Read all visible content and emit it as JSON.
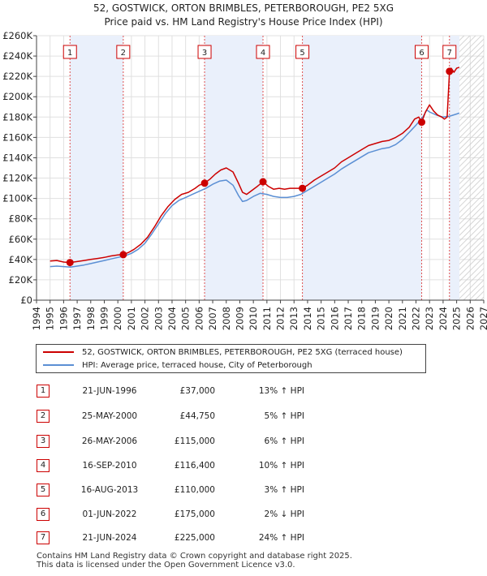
{
  "chart_data": {
    "type": "line",
    "title": "52, GOSTWICK, ORTON BRIMBLES, PETERBOROUGH, PE2 5XG",
    "subtitle": "Price paid vs. HM Land Registry's House Price Index (HPI)",
    "xlim": [
      1994,
      2027
    ],
    "ylim": [
      0,
      260000
    ],
    "x_ticks": [
      "1994",
      "1995",
      "1996",
      "1997",
      "1998",
      "1999",
      "2000",
      "2001",
      "2002",
      "2003",
      "2004",
      "2005",
      "2006",
      "2007",
      "2008",
      "2009",
      "2010",
      "2011",
      "2012",
      "2013",
      "2014",
      "2015",
      "2016",
      "2017",
      "2018",
      "2019",
      "2020",
      "2021",
      "2022",
      "2023",
      "2024",
      "2025",
      "2026",
      "2027"
    ],
    "y_ticks": [
      {
        "value": 0,
        "label": "£0"
      },
      {
        "value": 20000,
        "label": "£20K"
      },
      {
        "value": 40000,
        "label": "£40K"
      },
      {
        "value": 60000,
        "label": "£60K"
      },
      {
        "value": 80000,
        "label": "£80K"
      },
      {
        "value": 100000,
        "label": "£100K"
      },
      {
        "value": 120000,
        "label": "£120K"
      },
      {
        "value": 140000,
        "label": "£140K"
      },
      {
        "value": 160000,
        "label": "£160K"
      },
      {
        "value": 180000,
        "label": "£180K"
      },
      {
        "value": 200000,
        "label": "£200K"
      },
      {
        "value": 220000,
        "label": "£220K"
      },
      {
        "value": 240000,
        "label": "£240K"
      },
      {
        "value": 260000,
        "label": "£260K"
      }
    ],
    "data_range_end": 2025.2,
    "series": [
      {
        "name": "52, GOSTWICK, ORTON BRIMBLES, PETERBOROUGH, PE2 5XG (terraced house)",
        "color": "#cc0000",
        "points": [
          [
            1995.0,
            38500
          ],
          [
            1995.5,
            39000
          ],
          [
            1996.0,
            37500
          ],
          [
            1996.47,
            37000
          ],
          [
            1997.0,
            38000
          ],
          [
            1997.5,
            39000
          ],
          [
            1998.0,
            40000
          ],
          [
            1998.5,
            41000
          ],
          [
            1999.0,
            42000
          ],
          [
            1999.5,
            43500
          ],
          [
            2000.0,
            44500
          ],
          [
            2000.4,
            44750
          ],
          [
            2000.8,
            47000
          ],
          [
            2001.2,
            50000
          ],
          [
            2001.7,
            55000
          ],
          [
            2002.2,
            62000
          ],
          [
            2002.7,
            72000
          ],
          [
            2003.2,
            83000
          ],
          [
            2003.7,
            92000
          ],
          [
            2004.2,
            99000
          ],
          [
            2004.7,
            104000
          ],
          [
            2005.2,
            106000
          ],
          [
            2005.7,
            110000
          ],
          [
            2006.0,
            113000
          ],
          [
            2006.4,
            115000
          ],
          [
            2006.8,
            119000
          ],
          [
            2007.2,
            124000
          ],
          [
            2007.6,
            128000
          ],
          [
            2008.0,
            130000
          ],
          [
            2008.5,
            126000
          ],
          [
            2008.9,
            115000
          ],
          [
            2009.2,
            106000
          ],
          [
            2009.5,
            104000
          ],
          [
            2009.9,
            108000
          ],
          [
            2010.3,
            112000
          ],
          [
            2010.71,
            116400
          ],
          [
            2011.1,
            112000
          ],
          [
            2011.5,
            109000
          ],
          [
            2011.9,
            110000
          ],
          [
            2012.3,
            109000
          ],
          [
            2012.7,
            110000
          ],
          [
            2013.1,
            110000
          ],
          [
            2013.62,
            110000
          ],
          [
            2014.0,
            113000
          ],
          [
            2014.5,
            118000
          ],
          [
            2015.0,
            122000
          ],
          [
            2015.5,
            126000
          ],
          [
            2016.0,
            130000
          ],
          [
            2016.5,
            136000
          ],
          [
            2017.0,
            140000
          ],
          [
            2017.5,
            144000
          ],
          [
            2018.0,
            148000
          ],
          [
            2018.5,
            152000
          ],
          [
            2019.0,
            154000
          ],
          [
            2019.5,
            156000
          ],
          [
            2020.0,
            157000
          ],
          [
            2020.5,
            160000
          ],
          [
            2021.0,
            164000
          ],
          [
            2021.5,
            170000
          ],
          [
            2021.9,
            178000
          ],
          [
            2022.2,
            180000
          ],
          [
            2022.42,
            175000
          ],
          [
            2022.7,
            185000
          ],
          [
            2023.0,
            192000
          ],
          [
            2023.3,
            186000
          ],
          [
            2023.6,
            182000
          ],
          [
            2023.9,
            180000
          ],
          [
            2024.1,
            178000
          ],
          [
            2024.3,
            180000
          ],
          [
            2024.47,
            225000
          ],
          [
            2024.6,
            228000
          ],
          [
            2024.8,
            224000
          ],
          [
            2025.0,
            228000
          ],
          [
            2025.2,
            229000
          ]
        ]
      },
      {
        "name": "HPI: Average price, terraced house, City of Peterborough",
        "color": "#5b8fd4",
        "points": [
          [
            1995.0,
            33000
          ],
          [
            1995.5,
            33500
          ],
          [
            1996.0,
            33000
          ],
          [
            1996.5,
            32500
          ],
          [
            1997.0,
            33500
          ],
          [
            1997.5,
            34500
          ],
          [
            1998.0,
            36000
          ],
          [
            1998.5,
            37500
          ],
          [
            1999.0,
            39000
          ],
          [
            1999.5,
            40500
          ],
          [
            2000.0,
            42000
          ],
          [
            2000.5,
            43500
          ],
          [
            2001.0,
            46000
          ],
          [
            2001.5,
            50000
          ],
          [
            2002.0,
            56000
          ],
          [
            2002.5,
            65000
          ],
          [
            2003.0,
            75000
          ],
          [
            2003.5,
            85000
          ],
          [
            2004.0,
            93000
          ],
          [
            2004.5,
            98000
          ],
          [
            2005.0,
            101000
          ],
          [
            2005.5,
            104000
          ],
          [
            2006.0,
            107000
          ],
          [
            2006.5,
            110000
          ],
          [
            2007.0,
            114000
          ],
          [
            2007.5,
            117000
          ],
          [
            2008.0,
            118000
          ],
          [
            2008.5,
            113000
          ],
          [
            2008.9,
            103000
          ],
          [
            2009.2,
            97000
          ],
          [
            2009.5,
            98000
          ],
          [
            2010.0,
            102000
          ],
          [
            2010.5,
            105000
          ],
          [
            2011.0,
            104000
          ],
          [
            2011.5,
            102000
          ],
          [
            2012.0,
            101000
          ],
          [
            2012.5,
            101000
          ],
          [
            2013.0,
            102000
          ],
          [
            2013.5,
            104000
          ],
          [
            2014.0,
            108000
          ],
          [
            2014.5,
            112000
          ],
          [
            2015.0,
            116000
          ],
          [
            2015.5,
            120000
          ],
          [
            2016.0,
            124000
          ],
          [
            2016.5,
            129000
          ],
          [
            2017.0,
            133000
          ],
          [
            2017.5,
            137000
          ],
          [
            2018.0,
            141000
          ],
          [
            2018.5,
            145000
          ],
          [
            2019.0,
            147000
          ],
          [
            2019.5,
            149000
          ],
          [
            2020.0,
            150000
          ],
          [
            2020.5,
            153000
          ],
          [
            2021.0,
            158000
          ],
          [
            2021.5,
            165000
          ],
          [
            2022.0,
            172000
          ],
          [
            2022.5,
            180000
          ],
          [
            2022.8,
            187000
          ],
          [
            2023.0,
            185000
          ],
          [
            2023.5,
            182000
          ],
          [
            2024.0,
            180000
          ],
          [
            2024.5,
            181000
          ],
          [
            2025.0,
            183000
          ],
          [
            2025.2,
            184000
          ]
        ]
      }
    ],
    "transactions": [
      {
        "num": "1",
        "x": 1996.47,
        "price": 37000
      },
      {
        "num": "2",
        "x": 2000.4,
        "price": 44750
      },
      {
        "num": "3",
        "x": 2006.4,
        "price": 115000
      },
      {
        "num": "4",
        "x": 2010.71,
        "price": 116400
      },
      {
        "num": "5",
        "x": 2013.62,
        "price": 110000
      },
      {
        "num": "6",
        "x": 2022.42,
        "price": 175000
      },
      {
        "num": "7",
        "x": 2024.47,
        "price": 225000
      }
    ]
  },
  "legend": {
    "property_label": "52, GOSTWICK, ORTON BRIMBLES, PETERBOROUGH, PE2 5XG (terraced house)",
    "hpi_label": "HPI: Average price, terraced house, City of Peterborough"
  },
  "table": [
    {
      "num": "1",
      "date": "21-JUN-1996",
      "price": "£37,000",
      "hpi": "13% ↑ HPI"
    },
    {
      "num": "2",
      "date": "25-MAY-2000",
      "price": "£44,750",
      "hpi": "5% ↑ HPI"
    },
    {
      "num": "3",
      "date": "26-MAY-2006",
      "price": "£115,000",
      "hpi": "6% ↑ HPI"
    },
    {
      "num": "4",
      "date": "16-SEP-2010",
      "price": "£116,400",
      "hpi": "10% ↑ HPI"
    },
    {
      "num": "5",
      "date": "16-AUG-2013",
      "price": "£110,000",
      "hpi": "3% ↑ HPI"
    },
    {
      "num": "6",
      "date": "01-JUN-2022",
      "price": "£175,000",
      "hpi": "2% ↓ HPI"
    },
    {
      "num": "7",
      "date": "21-JUN-2024",
      "price": "£225,000",
      "hpi": "24% ↑ HPI"
    }
  ],
  "footer": {
    "line1": "Contains HM Land Registry data © Crown copyright and database right 2025.",
    "line2": "This data is licensed under the Open Government Licence v3.0."
  },
  "colors": {
    "property": "#cc0000",
    "hpi": "#5b8fd4",
    "grid": "#dddddd",
    "shade": "#eaf0fb",
    "hatch": "#bbbbbb"
  }
}
